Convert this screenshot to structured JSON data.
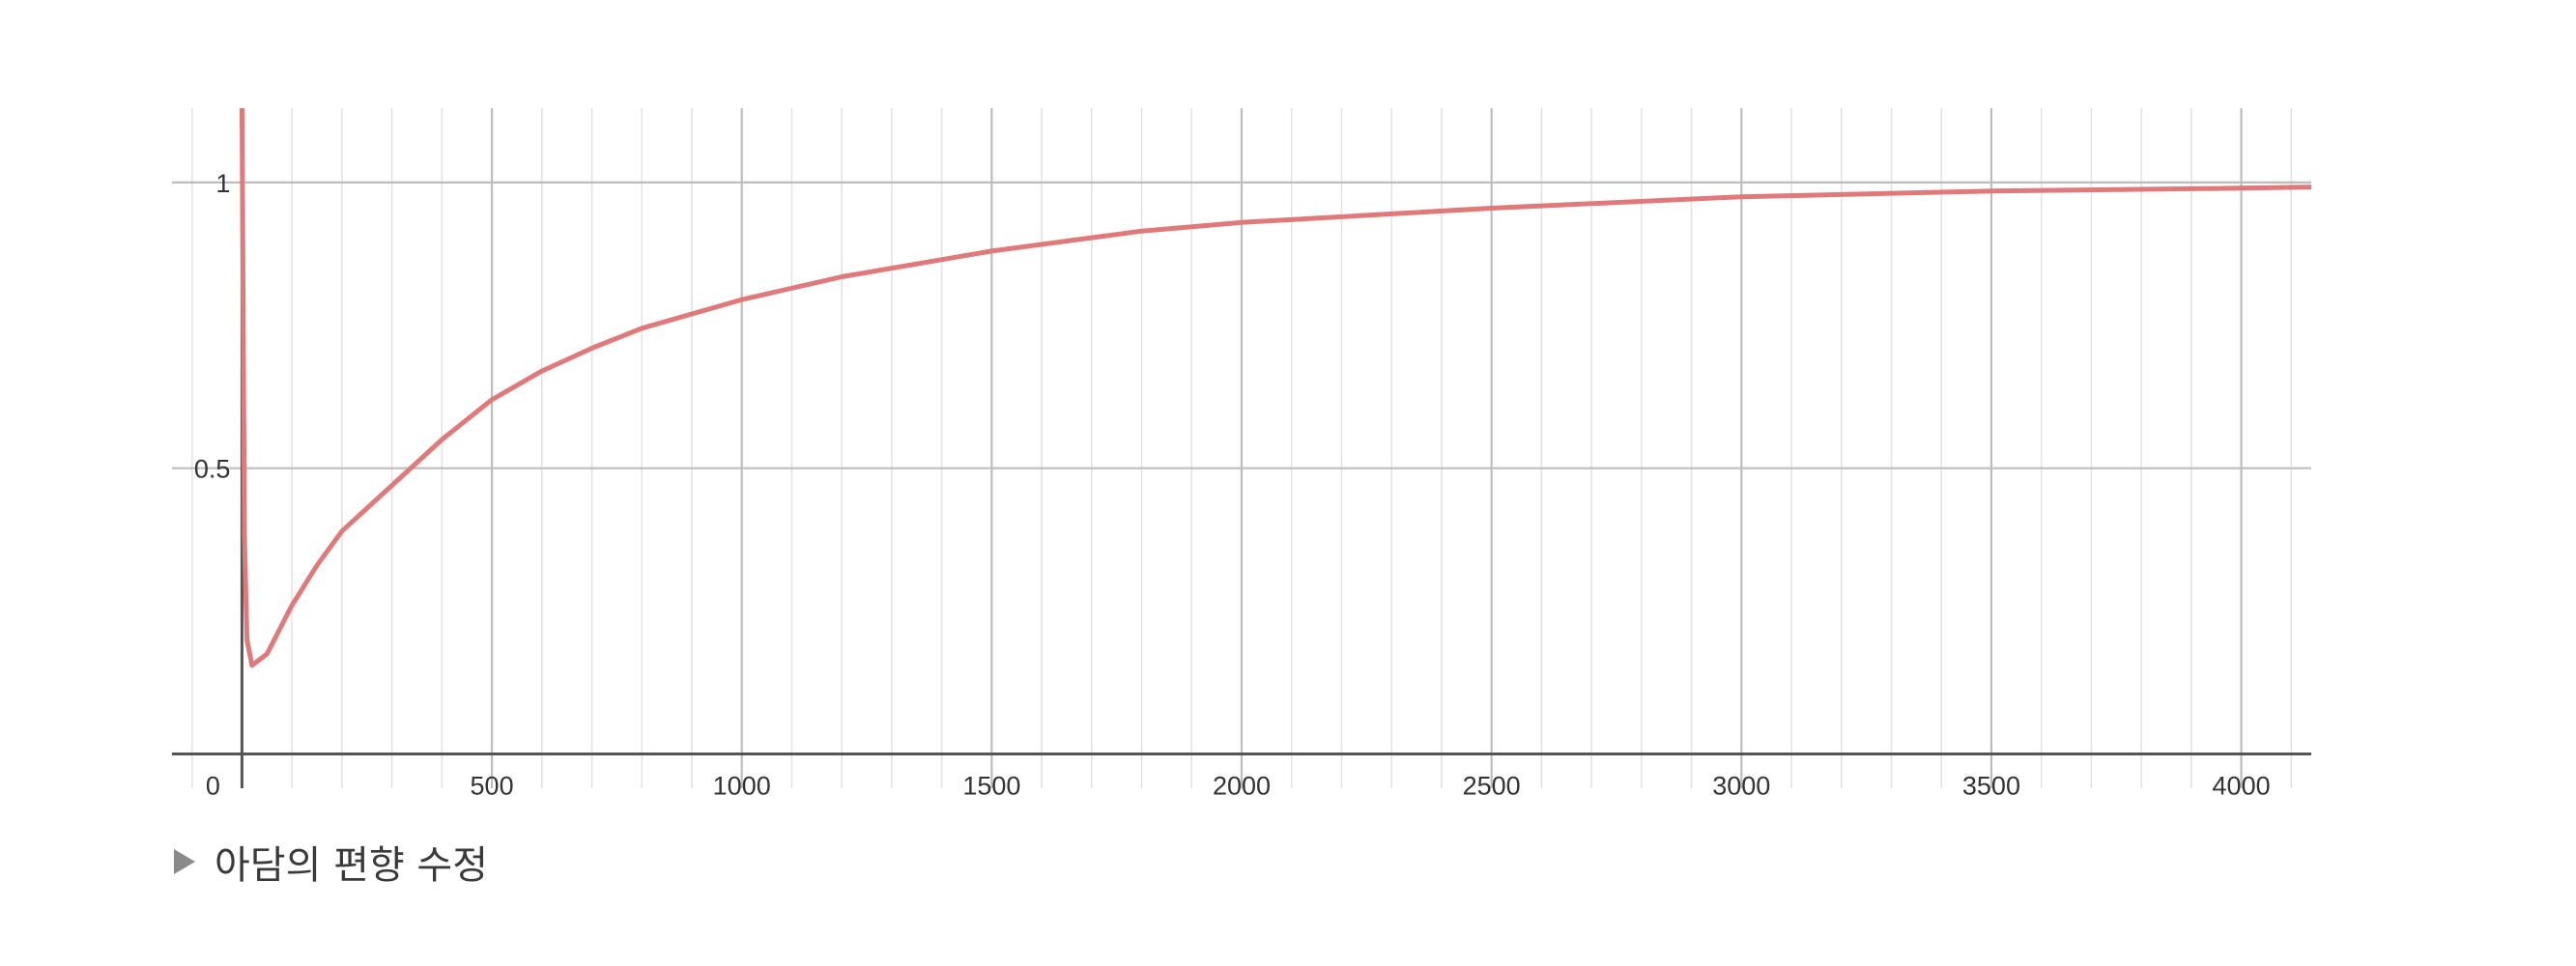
{
  "chart_data": {
    "type": "line",
    "title": "",
    "xlabel": "",
    "ylabel": "",
    "xlim": [
      -140,
      4140
    ],
    "ylim": [
      -0.06,
      1.13
    ],
    "grid": true,
    "x_ticks": [
      0,
      500,
      1000,
      1500,
      2000,
      2500,
      3000,
      3500,
      4000
    ],
    "x_tick_labels": [
      "0",
      "500",
      "1000",
      "1500",
      "2000",
      "2500",
      "3000",
      "3500",
      "4000"
    ],
    "y_ticks": [
      0.5,
      1
    ],
    "y_tick_labels": [
      "0.5",
      "1"
    ],
    "series": [
      {
        "color": "#e07a7a",
        "x": [
          0,
          1,
          5,
          10,
          20,
          50,
          100,
          150,
          200,
          300,
          400,
          500,
          600,
          700,
          800,
          1000,
          1200,
          1500,
          1800,
          2000,
          2500,
          3000,
          3500,
          4000,
          4140
        ],
        "values": [
          1.15,
          1.0,
          0.38,
          0.2,
          0.155,
          0.175,
          0.26,
          0.33,
          0.39,
          0.47,
          0.55,
          0.62,
          0.67,
          0.71,
          0.745,
          0.795,
          0.835,
          0.88,
          0.915,
          0.93,
          0.955,
          0.975,
          0.985,
          0.99,
          0.992
        ]
      }
    ]
  },
  "caption": {
    "text": "아담의 편향 수정"
  }
}
